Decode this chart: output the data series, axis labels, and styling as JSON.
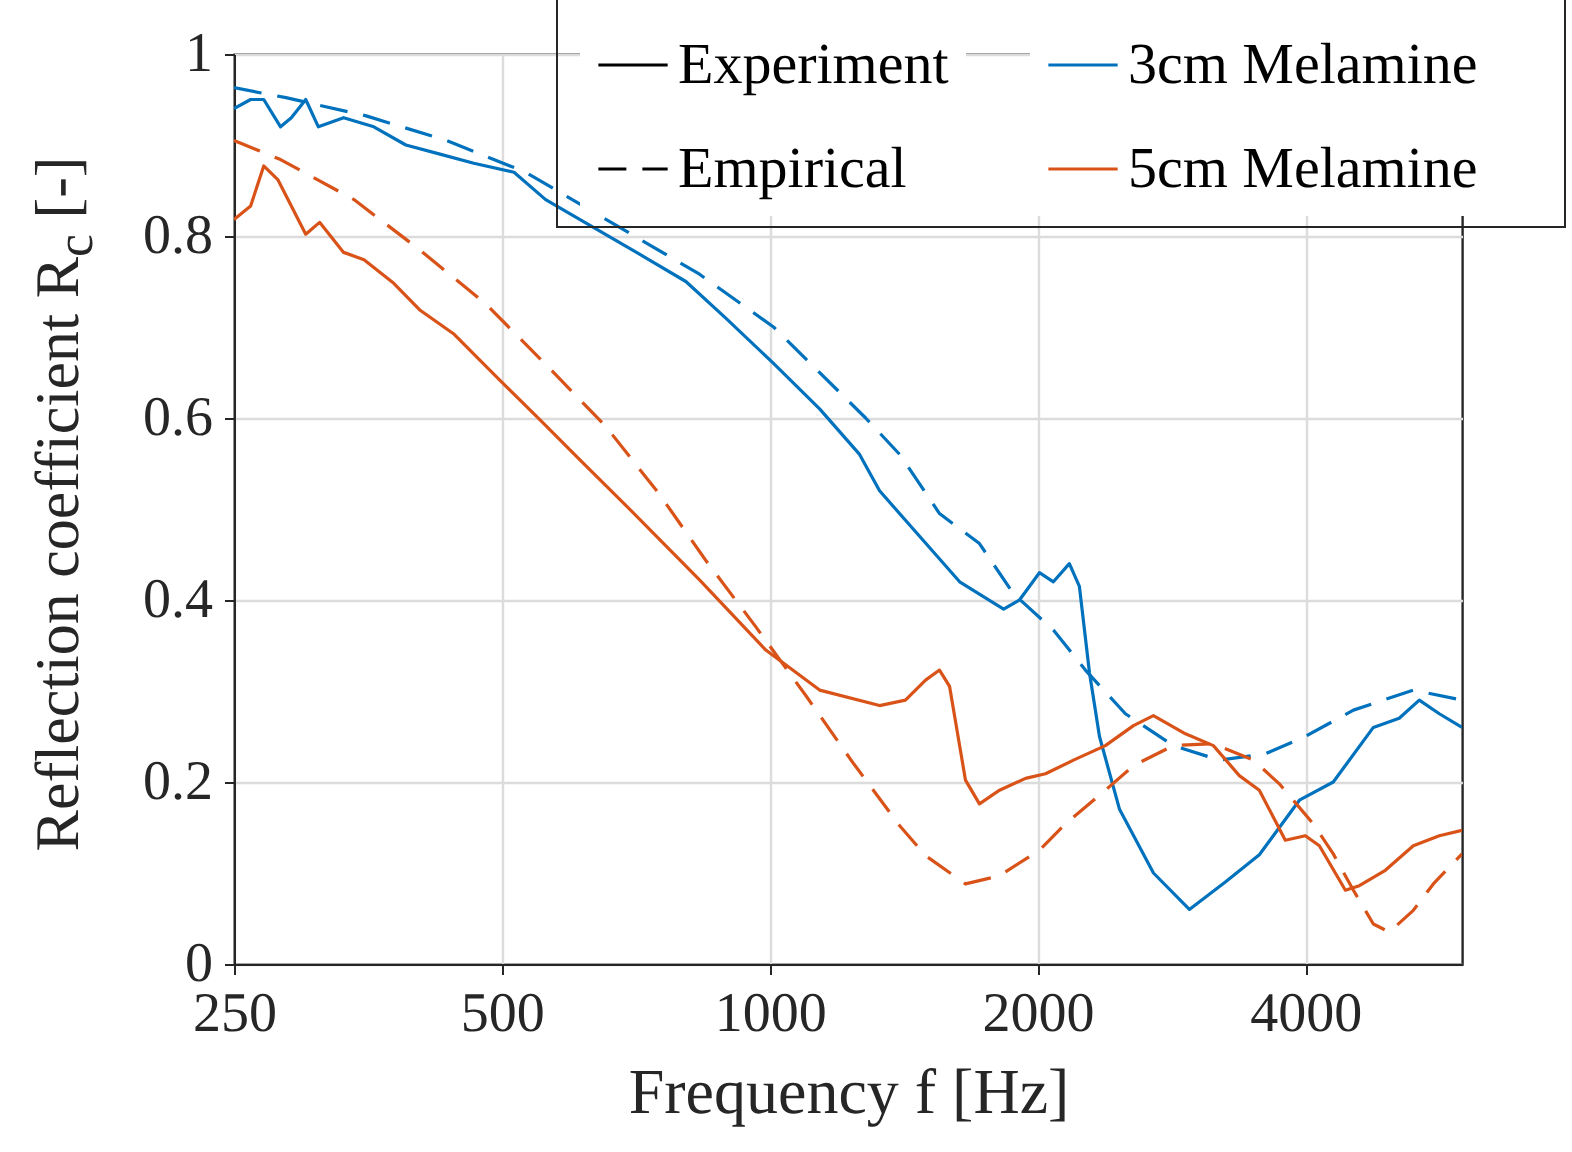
{
  "chart_data": {
    "type": "line",
    "xlabel": "Frequency f [Hz]",
    "ylabel": "Reflection coefficient R$_{c}$ [-]",
    "log": "x",
    "xlim": [
      250,
      6000
    ],
    "xticks": [
      250,
      500,
      1000,
      2000,
      4000
    ],
    "ylim": [
      0,
      1
    ],
    "yticks": [
      0,
      0.2,
      0.4,
      0.6,
      0.8,
      1
    ],
    "grid": true,
    "legend": "top right",
    "annotations": [
      "Experiment",
      "Empirical"
    ],
    "series": [
      {
        "name": "3cm Melamine",
        "color": "#0072bd",
        "line_style": "solid",
        "x": [
          250,
          261,
          270,
          282,
          290,
          301,
          311,
          332,
          359,
          390,
          426,
          465,
          516,
          560,
          714,
          805,
          892,
          1010,
          1138,
          1262,
          1329,
          1474,
          1635,
          1832,
          1909,
          2010,
          2084,
          2172,
          2229,
          2288,
          2348,
          2473,
          2700,
          2963,
          3252,
          3551,
          3939,
          4300,
          4770,
          5100,
          5372,
          5658,
          6000
        ],
        "values": [
          0.94,
          0.95,
          0.95,
          0.92,
          0.93,
          0.95,
          0.92,
          0.93,
          0.92,
          0.9,
          0.89,
          0.88,
          0.87,
          0.84,
          0.78,
          0.75,
          0.71,
          0.66,
          0.61,
          0.56,
          0.52,
          0.47,
          0.42,
          0.39,
          0.4,
          0.43,
          0.42,
          0.44,
          0.415,
          0.32,
          0.25,
          0.17,
          0.1,
          0.06,
          0.09,
          0.12,
          0.18,
          0.2,
          0.26,
          0.27,
          0.29,
          0.275,
          0.26
        ]
      },
      {
        "color": "#0072bd",
        "line_style": "dashed",
        "x": [
          250,
          286,
          352,
          433,
          532,
          834,
          1010,
          1282,
          1400,
          1552,
          1721,
          1879,
          2084,
          2264,
          2511,
          2843,
          3203,
          3607,
          4000,
          4530,
          5290,
          6000
        ],
        "values": [
          0.963,
          0.952,
          0.932,
          0.905,
          0.87,
          0.758,
          0.7,
          0.6,
          0.56,
          0.495,
          0.462,
          0.407,
          0.367,
          0.323,
          0.275,
          0.24,
          0.224,
          0.231,
          0.25,
          0.279,
          0.301,
          0.29
        ]
      },
      {
        "name": "5cm Melamine",
        "color": "#d95319",
        "line_style": "solid",
        "x": [
          250,
          261,
          270,
          280,
          301,
          312,
          332,
          350,
          378,
          404,
          442,
          497,
          552,
          612,
          704,
          834,
          990,
          1138,
          1329,
          1421,
          1497,
          1552,
          1593,
          1660,
          1721,
          1813,
          1939,
          2042,
          2195,
          2384,
          2564,
          2700,
          2933,
          3153,
          3372,
          3551,
          3798,
          4000,
          4148,
          4437,
          4600,
          4920,
          5290,
          5658,
          6000
        ],
        "values": [
          0.818,
          0.833,
          0.877,
          0.862,
          0.802,
          0.815,
          0.782,
          0.774,
          0.748,
          0.719,
          0.692,
          0.642,
          0.598,
          0.554,
          0.495,
          0.422,
          0.345,
          0.301,
          0.284,
          0.29,
          0.312,
          0.323,
          0.305,
          0.202,
          0.176,
          0.191,
          0.204,
          0.209,
          0.224,
          0.24,
          0.262,
          0.273,
          0.253,
          0.24,
          0.207,
          0.191,
          0.136,
          0.141,
          0.13,
          0.081,
          0.086,
          0.103,
          0.13,
          0.141,
          0.147
        ]
      },
      {
        "color": "#d95319",
        "line_style": "dashed",
        "x": [
          250,
          282,
          341,
          404,
          480,
          560,
          654,
          752,
          847,
          964,
          1098,
          1243,
          1400,
          1497,
          1660,
          1813,
          2010,
          2150,
          2384,
          2564,
          2843,
          3153,
          3497,
          3740,
          4083,
          4300,
          4530,
          4770,
          4971,
          5290,
          5571,
          6000
        ],
        "values": [
          0.905,
          0.884,
          0.84,
          0.785,
          0.725,
          0.659,
          0.591,
          0.516,
          0.444,
          0.371,
          0.295,
          0.22,
          0.152,
          0.119,
          0.088,
          0.097,
          0.125,
          0.154,
          0.191,
          0.218,
          0.24,
          0.242,
          0.224,
          0.198,
          0.154,
          0.121,
          0.081,
          0.044,
          0.035,
          0.059,
          0.088,
          0.121
        ]
      }
    ]
  }
}
